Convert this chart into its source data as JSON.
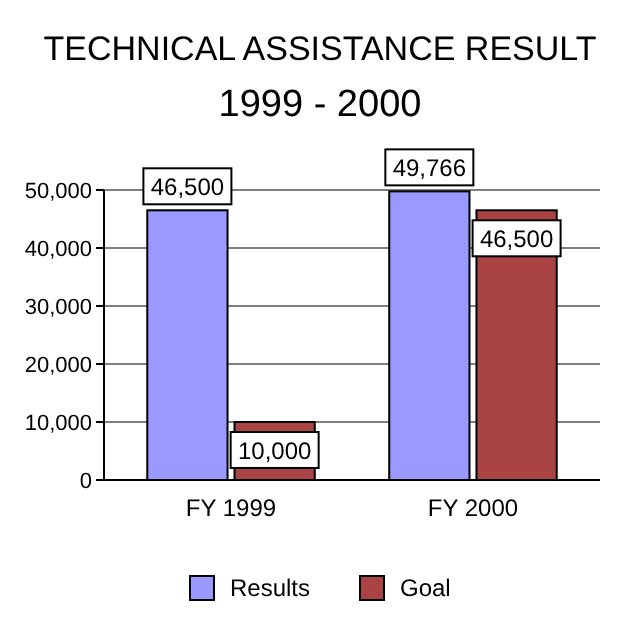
{
  "chart_data": {
    "type": "bar",
    "title": "TECHNICAL ASSISTANCE RESULT",
    "subtitle": "1999 - 2000",
    "categories": [
      "FY 1999",
      "FY 2000"
    ],
    "series": [
      {
        "name": "Results",
        "color": "#9999ff",
        "values": [
          46500,
          49766
        ],
        "value_labels": [
          "46,500",
          "49,766"
        ]
      },
      {
        "name": "Goal",
        "color": "#aa4444",
        "values": [
          10000,
          46500
        ],
        "value_labels": [
          "10,000",
          "46,500"
        ]
      }
    ],
    "ylim": [
      0,
      50000
    ],
    "yticks": [
      0,
      {
        "value": 10000,
        "label": "10,000"
      },
      {
        "value": 20000,
        "label": "20,000"
      },
      {
        "value": 30000,
        "label": "30,000"
      },
      {
        "value": 40000,
        "label": "40,000"
      },
      {
        "value": 50000,
        "label": "50,000"
      }
    ],
    "grid": "y",
    "legend": "bottom"
  }
}
